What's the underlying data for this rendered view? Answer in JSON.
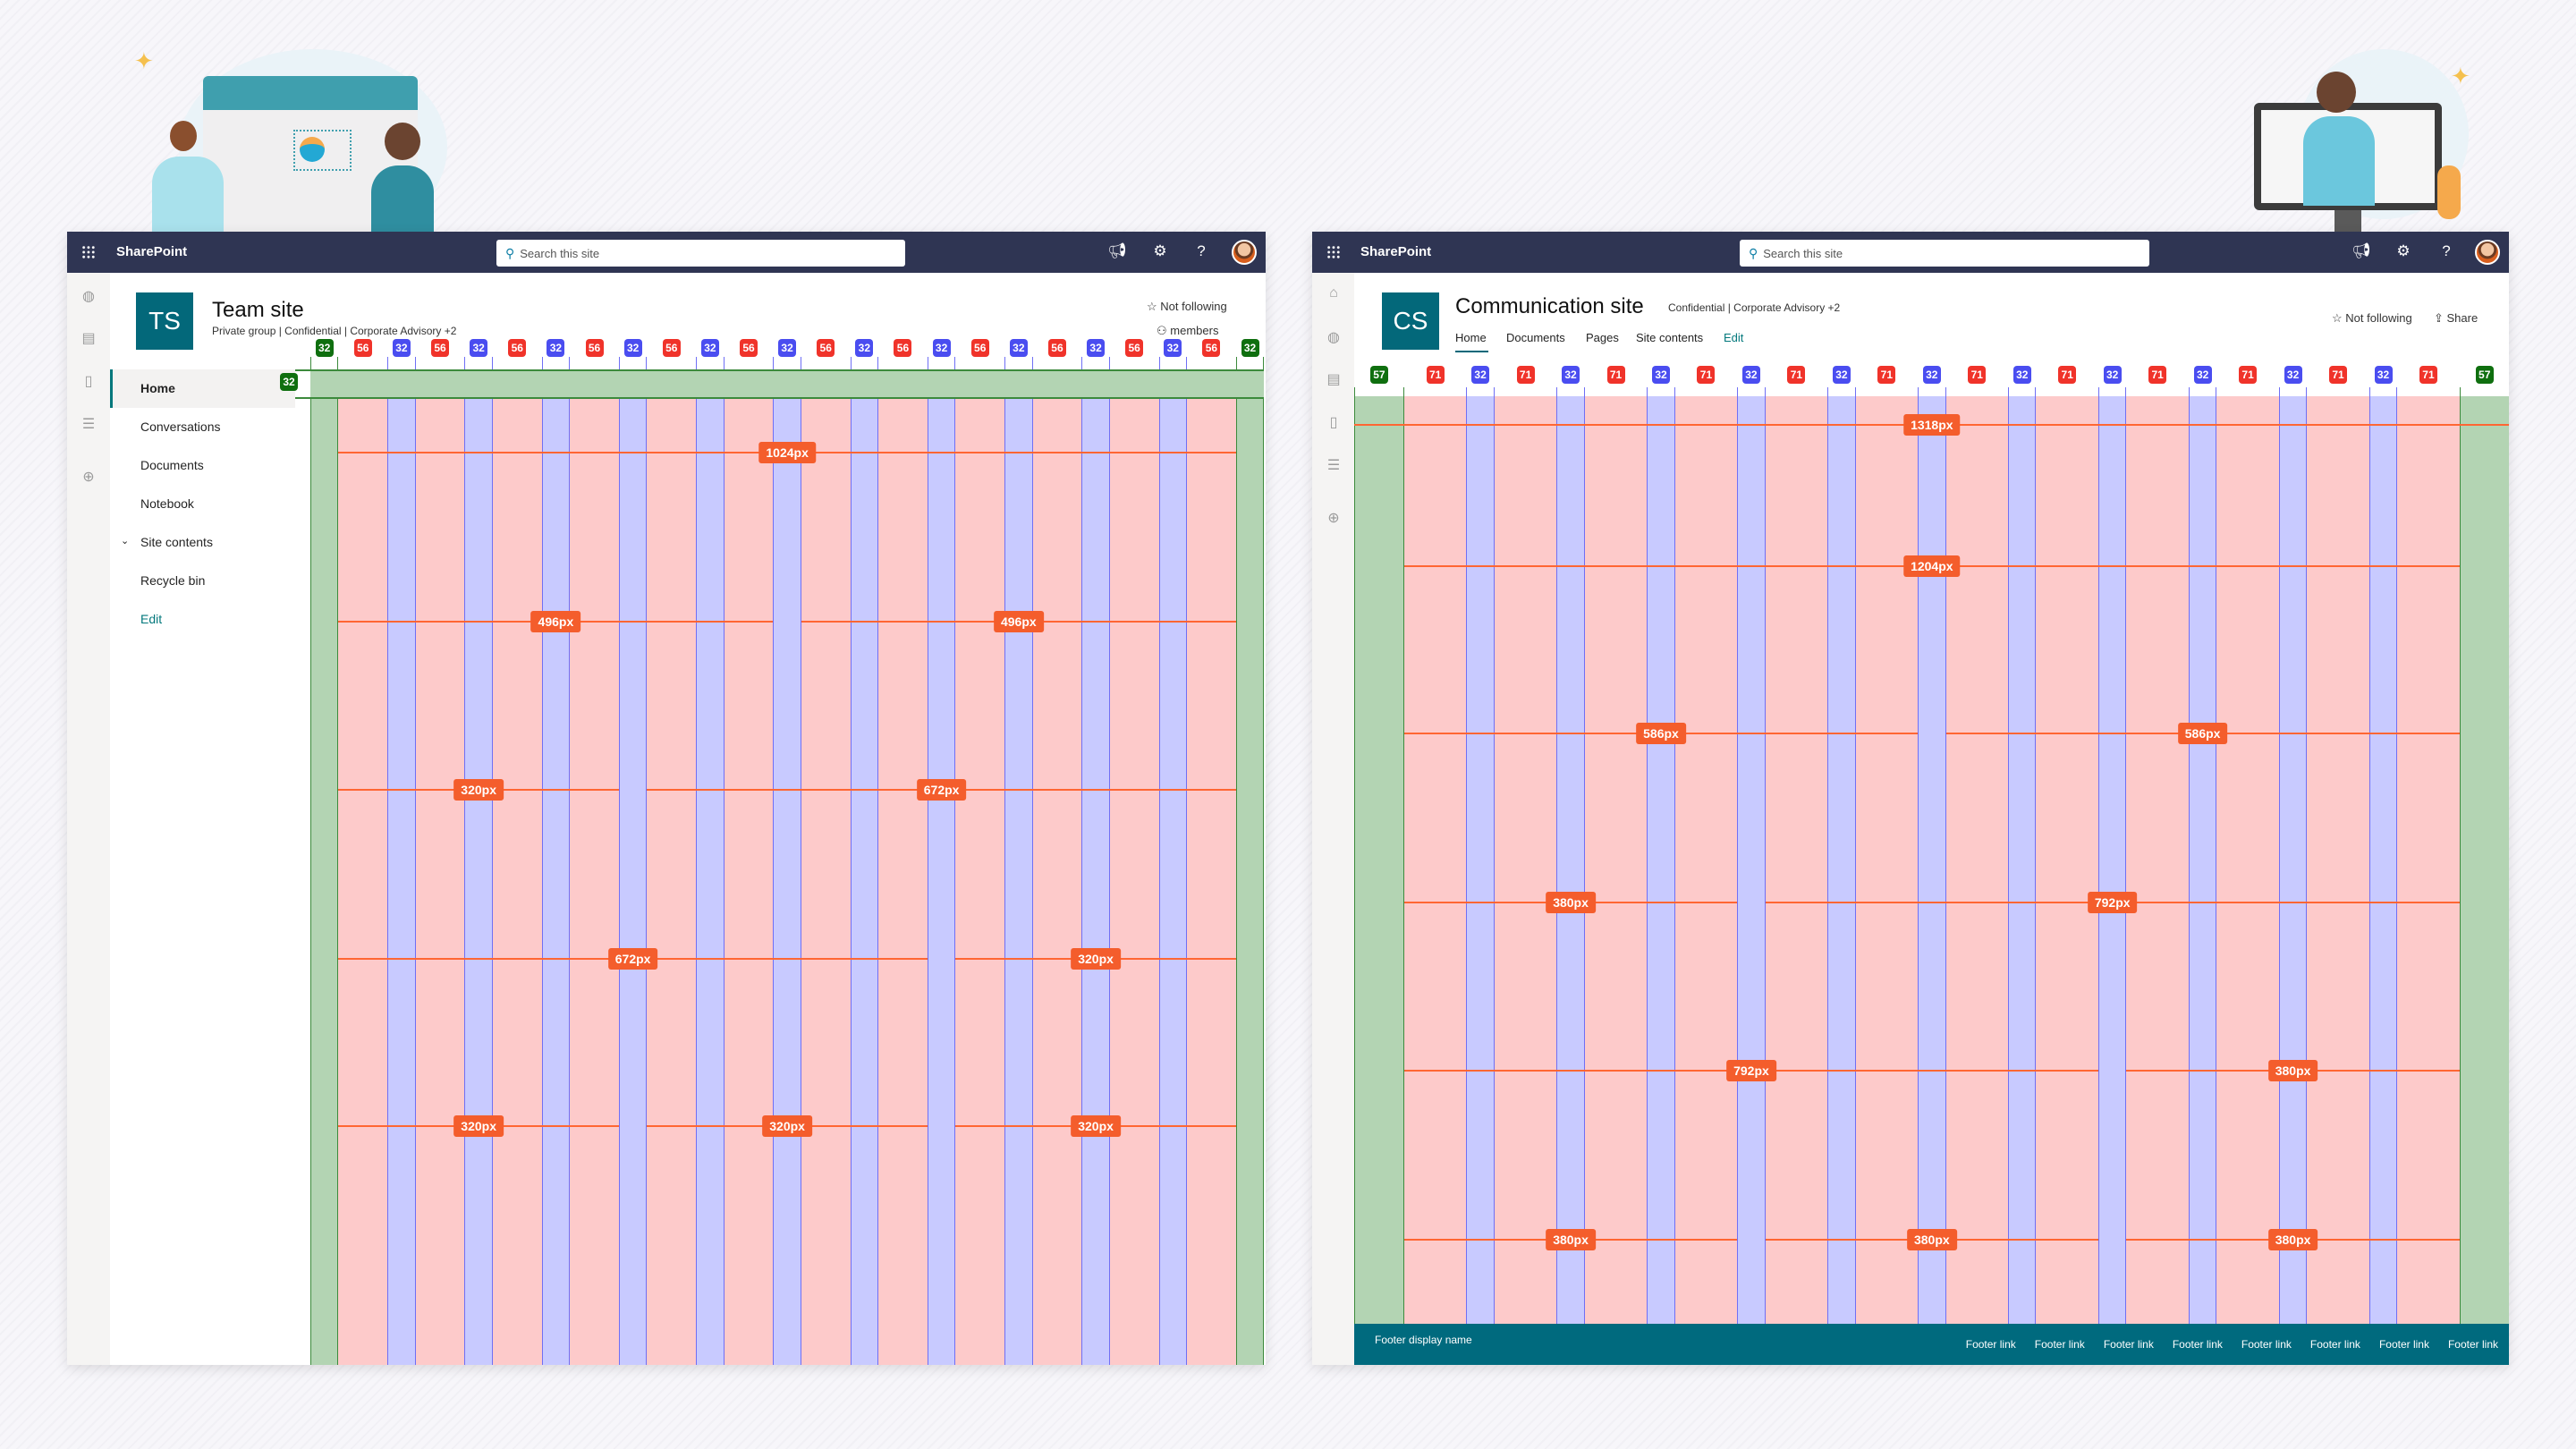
{
  "colors": {
    "topbar": "#2f3553",
    "brand_teal": "#03687a",
    "footer": "#006a7e",
    "margin_fill": "#b3d4b3",
    "column_fill": "#fdcaca",
    "gutter_fill": "#c8caff",
    "row_line": "#ff6633",
    "label_bg": "#f45d2c",
    "badge_margin": "#0f6f0f",
    "badge_column": "#f0332a",
    "badge_gutter": "#4a4df0"
  },
  "team": {
    "app_name": "SharePoint",
    "search_placeholder": "Search this site",
    "logo": "TS",
    "title": "Team site",
    "meta": "Private group | Confidential | Corporate Advisory +2",
    "follow": "Not following",
    "members": "members",
    "nav": [
      {
        "label": "Home",
        "selected": true
      },
      {
        "label": "Conversations"
      },
      {
        "label": "Documents"
      },
      {
        "label": "Notebook"
      },
      {
        "label": "Site contents",
        "expandable": true
      },
      {
        "label": "Recycle bin"
      },
      {
        "label": "Edit"
      }
    ],
    "header_band_badge": "32",
    "grid": {
      "margin": 32,
      "column": 56,
      "gutter": 32,
      "count": 12,
      "rows": [
        [
          "1024px"
        ],
        [
          "496px",
          "496px"
        ],
        [
          "320px",
          "672px"
        ],
        [
          "672px",
          "320px"
        ],
        [
          "320px",
          "320px",
          "320px"
        ]
      ]
    }
  },
  "comm": {
    "app_name": "SharePoint",
    "search_placeholder": "Search this site",
    "logo": "CS",
    "title": "Communication site",
    "meta": "Confidential | Corporate Advisory +2",
    "follow": "Not following",
    "share": "Share",
    "nav": [
      {
        "label": "Home",
        "selected": true
      },
      {
        "label": "Documents"
      },
      {
        "label": "Pages"
      },
      {
        "label": "Site contents"
      },
      {
        "label": "Edit"
      }
    ],
    "grid": {
      "margin": 57,
      "column": 71,
      "gutter": 32,
      "count": 12,
      "rows": [
        [
          "1318px"
        ],
        [
          "1204px"
        ],
        [
          "586px",
          "586px"
        ],
        [
          "380px",
          "792px"
        ],
        [
          "792px",
          "380px"
        ],
        [
          "380px",
          "380px",
          "380px"
        ]
      ]
    },
    "footer": {
      "name": "Footer display name",
      "links": [
        "Footer link",
        "Footer link",
        "Footer link",
        "Footer link",
        "Footer link",
        "Footer link",
        "Footer link",
        "Footer link"
      ]
    }
  }
}
